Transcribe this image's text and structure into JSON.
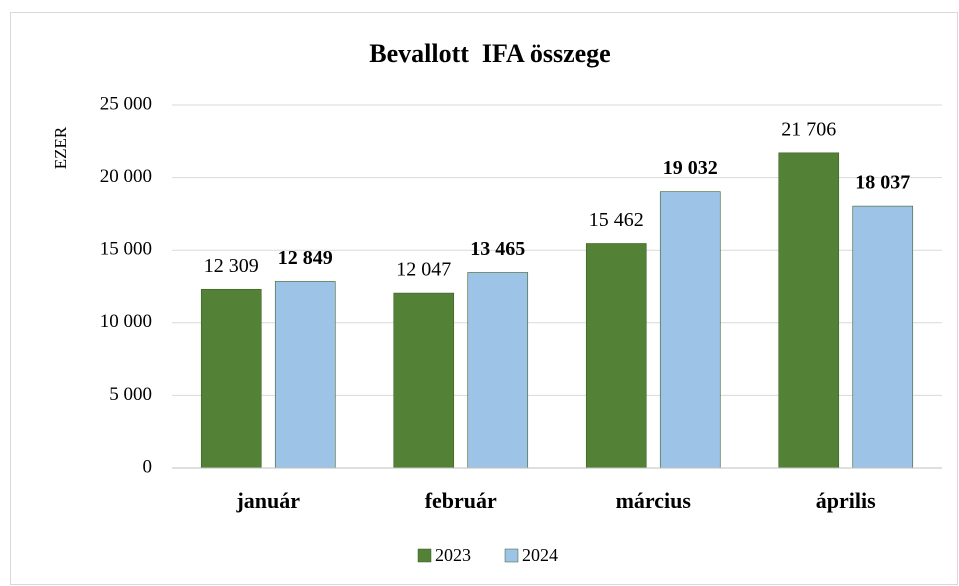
{
  "chart_data": {
    "type": "bar",
    "title": "Bevallott  IFA összege",
    "y_label": "EZER",
    "categories": [
      "január",
      "február",
      "március",
      "április"
    ],
    "series": [
      {
        "name": "2023",
        "color": "#538135",
        "values": [
          12309,
          12047,
          15462,
          21706
        ],
        "value_labels": [
          "12 309",
          "12 047",
          "15 462",
          "21 706"
        ]
      },
      {
        "name": "2024",
        "color": "#9dc3e6",
        "values": [
          12849,
          13465,
          19032,
          18037
        ],
        "value_labels": [
          "12 849",
          "13 465",
          "19 032",
          "18 037"
        ]
      }
    ],
    "ylim": [
      0,
      25000
    ],
    "yticks": [
      0,
      {
        "value": 5000,
        "label": "5 000"
      },
      {
        "value": 10000,
        "label": "10 000"
      },
      {
        "value": 15000,
        "label": "15 000"
      },
      {
        "value": 20000,
        "label": "20 000"
      },
      {
        "value": 25000,
        "label": "25 000"
      }
    ],
    "grid": true,
    "legend": "bottom"
  }
}
